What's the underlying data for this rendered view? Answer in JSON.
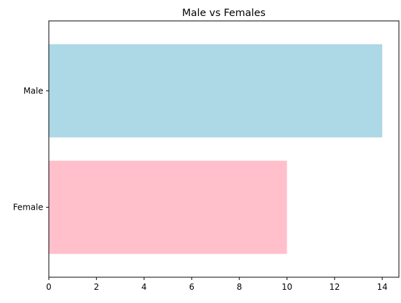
{
  "chart_data": {
    "type": "bar",
    "orientation": "horizontal",
    "title": "Male vs Females",
    "xlabel": "",
    "ylabel": "",
    "categories": [
      "Male",
      "Female"
    ],
    "values": [
      14,
      10
    ],
    "colors": [
      "#add8e6",
      "#ffc0cb"
    ],
    "xlim": [
      0,
      14.7
    ],
    "xticks": [
      0,
      2,
      4,
      6,
      8,
      10,
      12,
      14
    ],
    "grid": false,
    "legend": "none"
  }
}
